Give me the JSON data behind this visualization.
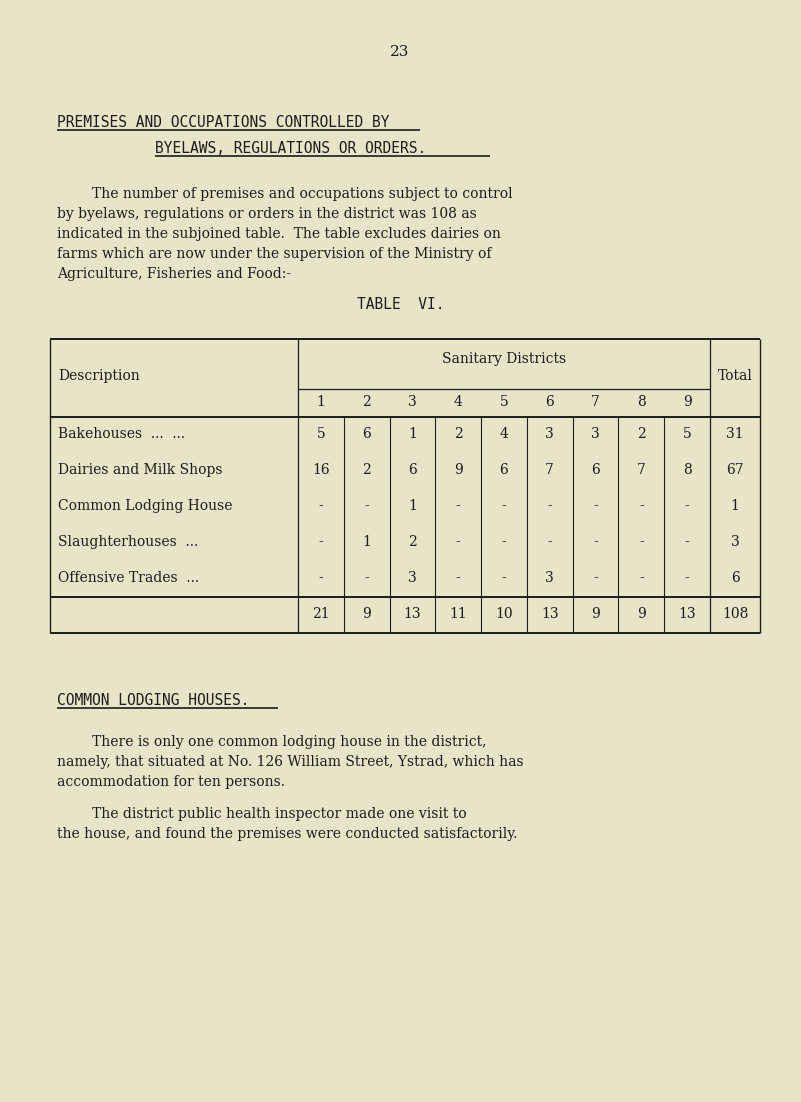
{
  "page_number": "23",
  "bg_color": "#e8e4c8",
  "title_line1": "PREMISES AND OCCUPATIONS CONTROLLED BY",
  "title_line2": "BYELAWS, REGULATIONS OR ORDERS.",
  "paragraph1": "        The number of premises and occupations subject to control\nby byelaws, regulations or orders in the district was 108 as\nindicated in the subjoined table.  The table excludes dairies on\nfarms which are now under the supervision of the Ministry of\nAgriculture, Fisheries and Food:-",
  "table_title": "TABLE  VI.",
  "table_header_group": "Sanitary Districts",
  "table_header_col": "Description",
  "table_header_total": "Total",
  "table_district_numbers": [
    "1",
    "2",
    "3",
    "4",
    "5",
    "6",
    "7",
    "8",
    "9"
  ],
  "table_rows": [
    {
      "label": "Bakehouses  ...  ...",
      "values": [
        "5",
        "6",
        "1",
        "2",
        "4",
        "3",
        "3",
        "2",
        "5"
      ],
      "total": "31"
    },
    {
      "label": "Dairies and Milk Shops",
      "values": [
        "16",
        "2",
        "6",
        "9",
        "6",
        "7",
        "6",
        "7",
        "8"
      ],
      "total": "67"
    },
    {
      "label": "Common Lodging House",
      "values": [
        "-",
        "-",
        "1",
        "-",
        "-",
        "-",
        "-",
        "-",
        "-"
      ],
      "total": "1"
    },
    {
      "label": "Slaughterhouses  ...",
      "values": [
        "-",
        "1",
        "2",
        "-",
        "-",
        "-",
        "-",
        "-",
        "-"
      ],
      "total": "3"
    },
    {
      "label": "Offensive Trades  ...",
      "values": [
        "-",
        "-",
        "3",
        "-",
        "-",
        "3",
        "-",
        "-",
        "-"
      ],
      "total": "6"
    }
  ],
  "table_totals": [
    "21",
    "9",
    "13",
    "11",
    "10",
    "13",
    "9",
    "9",
    "13"
  ],
  "table_grand_total": "108",
  "section2_title": "COMMON LODGING HOUSES.",
  "paragraph2": "        There is only one common lodging house in the district,\nnamely, that situated at No. 126 William Street, Ystrad, which has\naccommodation for ten persons.",
  "paragraph3": "        The district public health inspector made one visit to\nthe house, and found the premises were conducted satisfactorily."
}
